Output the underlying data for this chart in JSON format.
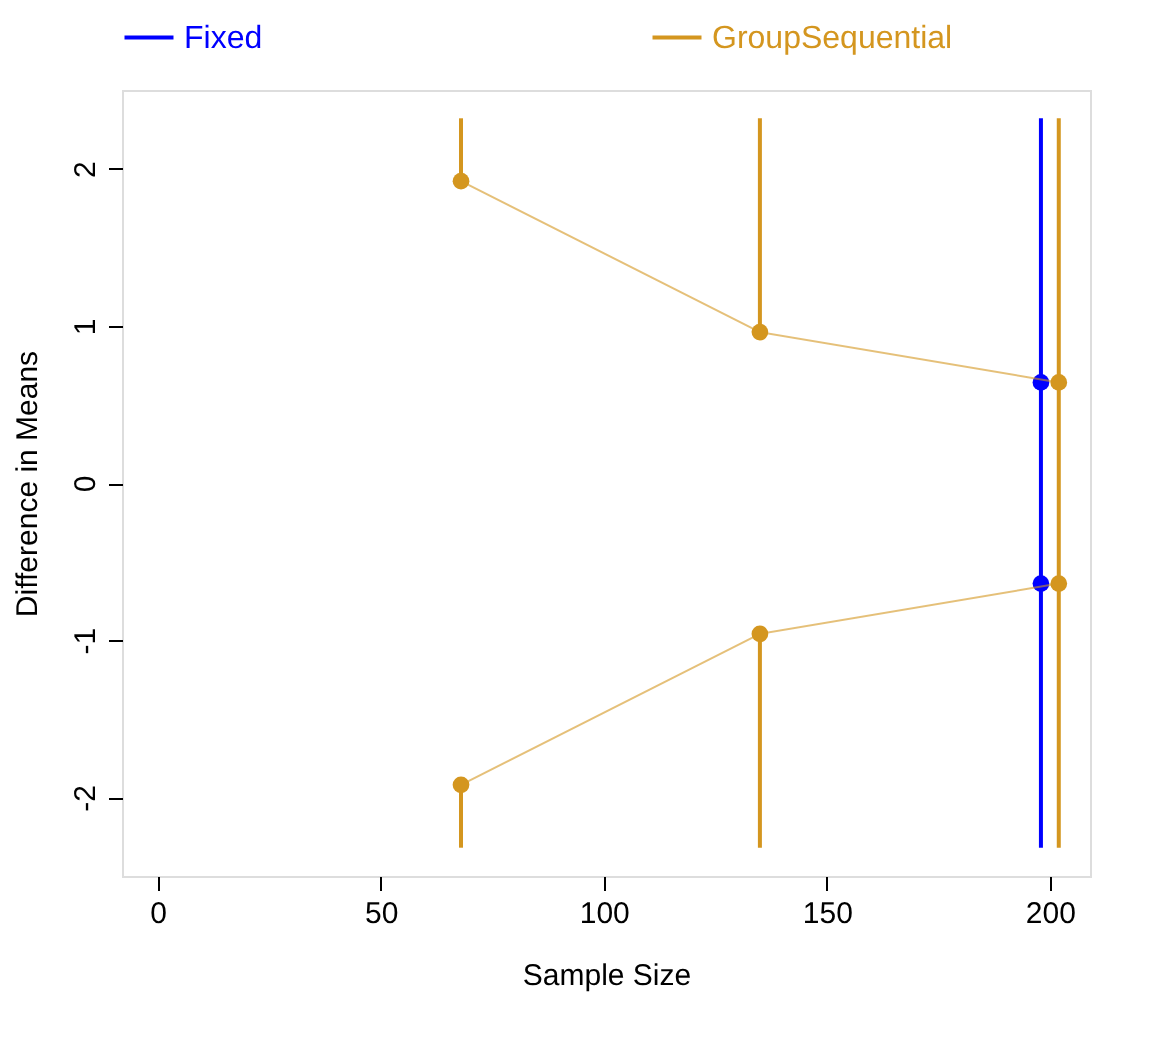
{
  "chart_data": {
    "type": "line",
    "xlabel": "Sample Size",
    "ylabel": "Difference in Means",
    "xlim": [
      -8,
      209
    ],
    "xticks": [
      0,
      50,
      100,
      150,
      200
    ],
    "ylim": [
      -2.5,
      2.5
    ],
    "yticks": [
      -2,
      -1,
      0,
      1,
      2
    ],
    "series": [
      {
        "name": "Fixed",
        "type": "scatter",
        "color": "#0000ff",
        "x": [
          198,
          198
        ],
        "values": [
          0.64,
          -0.64
        ],
        "errors": [
          [
            -2.32,
            2.32
          ],
          null
        ]
      },
      {
        "name": "GroupSequential",
        "type": "line",
        "color": "#d4961f",
        "x": [
          68,
          135,
          202
        ],
        "values": [
          1.92,
          0.96,
          0.64
        ],
        "errors": [
          [
            1.92,
            2.32
          ],
          [
            0.96,
            2.32
          ],
          [
            -2.32,
            2.32
          ]
        ]
      },
      {
        "type": "line",
        "color": "#d4961f",
        "x": [
          68,
          135,
          202
        ],
        "values": [
          -1.92,
          -0.96,
          -0.64
        ],
        "errors": [
          [
            -2.32,
            -1.92
          ],
          [
            -2.32,
            -0.96
          ],
          null
        ]
      }
    ],
    "marker": "circle",
    "line_style": "solid",
    "grid": false,
    "legend": "top"
  }
}
